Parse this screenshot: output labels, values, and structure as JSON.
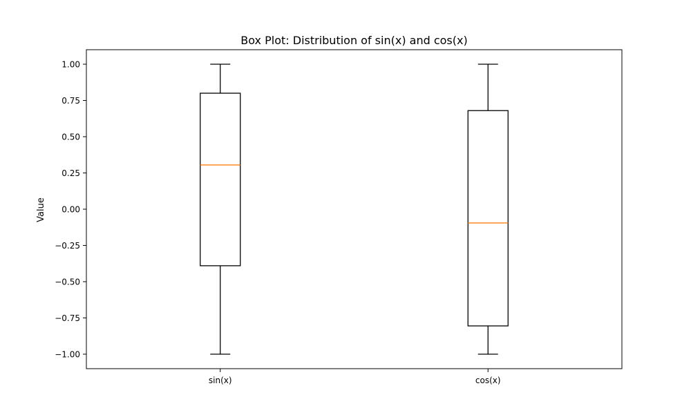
{
  "chart_data": {
    "type": "box",
    "title": "Box Plot: Distribution of sin(x) and cos(x)",
    "xlabel": "",
    "ylabel": "Value",
    "ylim": [
      -1.1,
      1.1
    ],
    "yticks": [
      -1.0,
      -0.75,
      -0.5,
      -0.25,
      0.0,
      0.25,
      0.5,
      0.75,
      1.0
    ],
    "ytick_labels": [
      "−1.00",
      "−0.75",
      "−0.50",
      "−0.25",
      "0.00",
      "0.25",
      "0.50",
      "0.75",
      "1.00"
    ],
    "categories": [
      "sin(x)",
      "cos(x)"
    ],
    "boxes": [
      {
        "label": "sin(x)",
        "whisker_low": -1.0,
        "q1": -0.39,
        "median": 0.305,
        "q3": 0.8,
        "whisker_high": 1.0
      },
      {
        "label": "cos(x)",
        "whisker_low": -1.0,
        "q1": -0.805,
        "median": -0.095,
        "q3": 0.68,
        "whisker_high": 1.0
      }
    ],
    "grid": false,
    "colors": {
      "box": "#000000",
      "median": "#ff7f0e",
      "whisker": "#000000"
    }
  }
}
